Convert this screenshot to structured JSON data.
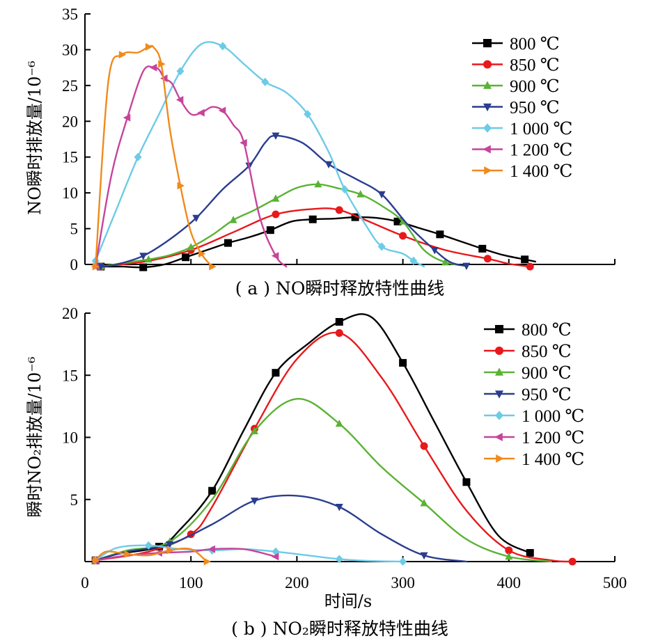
{
  "colors": {
    "800": "#000000",
    "850": "#e8181b",
    "900": "#5ab234",
    "950": "#2a3d8f",
    "1000": "#6ccbe6",
    "1200": "#c6449a",
    "1400": "#f08a1c"
  },
  "legend": [
    "800 ℃",
    "850 ℃",
    "900 ℃",
    "950 ℃",
    "1 000 ℃",
    "1 200 ℃",
    "1 400 ℃"
  ],
  "markers": [
    "square",
    "circle",
    "triangle-up",
    "triangle-down",
    "diamond",
    "triangle-left",
    "triangle-right"
  ],
  "chart_data": [
    {
      "type": "line",
      "caption": "( a ) NO瞬时释放特性曲线",
      "ylabel": "NO瞬时排放量/10⁻⁶",
      "xlim": [
        0,
        500
      ],
      "ylim": [
        0,
        35
      ],
      "yticks": [
        "0",
        "5",
        "10",
        "15",
        "20",
        "25",
        "30",
        "35"
      ],
      "ytick_values": [
        0,
        5,
        10,
        15,
        20,
        25,
        30,
        35
      ],
      "legend_position": "top-right",
      "series": [
        {
          "name": "800 ℃",
          "x": [
            15,
            35,
            55,
            75,
            95,
            115,
            135,
            155,
            175,
            195,
            215,
            235,
            255,
            275,
            295,
            315,
            335,
            355,
            375,
            395,
            415,
            425
          ],
          "y": [
            -0.3,
            -0.3,
            -0.4,
            0,
            1,
            2,
            3,
            3.8,
            4.8,
            6,
            6.3,
            6.4,
            6.6,
            6.5,
            6,
            5.1,
            4.2,
            3.2,
            2.2,
            1.3,
            0.7,
            0.4
          ]
        },
        {
          "name": "850 ℃",
          "x": [
            15,
            60,
            100,
            140,
            180,
            220,
            240,
            260,
            300,
            340,
            380,
            400,
            420
          ],
          "y": [
            -0.3,
            0.5,
            2,
            4.5,
            7,
            7.8,
            7.6,
            6.5,
            4,
            2,
            0.8,
            0.1,
            -0.3
          ]
        },
        {
          "name": "900 ℃",
          "x": [
            15,
            40,
            60,
            80,
            100,
            120,
            140,
            160,
            180,
            200,
            220,
            240,
            260,
            280,
            300,
            320,
            340,
            360
          ],
          "y": [
            -0.3,
            0.3,
            0.7,
            1.3,
            2.4,
            4.1,
            6.2,
            7.6,
            9.2,
            10.7,
            11.2,
            10.6,
            9.8,
            8.2,
            6,
            2,
            0.3,
            -0.2
          ]
        },
        {
          "name": "950 ℃",
          "x": [
            15,
            30,
            55,
            80,
            105,
            130,
            155,
            170,
            180,
            205,
            230,
            255,
            280,
            305,
            330,
            345,
            360
          ],
          "y": [
            -0.3,
            0,
            1.2,
            3.5,
            6.5,
            10.5,
            13.8,
            17,
            18,
            17,
            14,
            12,
            9.8,
            5.5,
            2,
            0.3,
            -0.2
          ]
        },
        {
          "name": "1 000 ℃",
          "x": [
            10,
            30,
            50,
            70,
            90,
            110,
            130,
            150,
            170,
            190,
            210,
            230,
            245,
            265,
            280,
            300,
            310,
            320
          ],
          "y": [
            0.5,
            7.8,
            15,
            21,
            27,
            30.8,
            30.5,
            28,
            25.5,
            24,
            21,
            15.7,
            10.5,
            5.5,
            2.5,
            1.5,
            0.5,
            -0.3
          ]
        },
        {
          "name": "1 200 ℃",
          "x": [
            10,
            25,
            40,
            55,
            65,
            70,
            75,
            82,
            90,
            100,
            110,
            120,
            130,
            140,
            150,
            165,
            180,
            190
          ],
          "y": [
            -0.3,
            12.5,
            20.5,
            27,
            27.5,
            27.2,
            26,
            25.3,
            23,
            21,
            21.2,
            22,
            21.5,
            19.5,
            17,
            6.6,
            1.2,
            -0.3
          ]
        },
        {
          "name": "1 400 ℃",
          "x": [
            10,
            22,
            35,
            50,
            60,
            65,
            72,
            80,
            90,
            100,
            110,
            115,
            120
          ],
          "y": [
            -0.3,
            25.5,
            29.3,
            29.6,
            30.4,
            30.3,
            28,
            19,
            11,
            4.5,
            1.5,
            0.5,
            -0.3
          ]
        }
      ]
    },
    {
      "type": "line",
      "caption": "( b ) NO₂瞬时释放特性曲线",
      "xlabel": "时间/s",
      "ylabel": "瞬时NO₂排放量/10⁻⁶",
      "xlim": [
        0,
        500
      ],
      "ylim": [
        0,
        20
      ],
      "xticks": [
        "0",
        "100",
        "200",
        "300",
        "400",
        "500"
      ],
      "xtick_values": [
        0,
        100,
        200,
        300,
        400,
        500
      ],
      "yticks": [
        "5",
        "10",
        "15",
        "20"
      ],
      "ytick_values": [
        5,
        10,
        15,
        20
      ],
      "legend_position": "top-right",
      "series": [
        {
          "name": "800 ℃",
          "x": [
            10,
            30,
            70,
            90,
            120,
            150,
            180,
            210,
            240,
            270,
            300,
            330,
            360,
            390,
            420
          ],
          "y": [
            0.1,
            0.6,
            1.2,
            2.6,
            5.7,
            10.6,
            15.2,
            17.5,
            19.3,
            19.7,
            16,
            11.2,
            6.4,
            2.1,
            0.7
          ]
        },
        {
          "name": "850 ℃",
          "x": [
            10,
            60,
            100,
            120,
            160,
            200,
            240,
            280,
            320,
            360,
            400,
            440,
            460
          ],
          "y": [
            0.1,
            0.8,
            2.2,
            4.4,
            10.7,
            16.3,
            18.4,
            14.8,
            9.3,
            4.1,
            0.9,
            0.1,
            0
          ]
        },
        {
          "name": "900 ℃",
          "x": [
            10,
            40,
            80,
            120,
            160,
            200,
            240,
            280,
            320,
            360,
            400,
            440
          ],
          "y": [
            0.1,
            0.9,
            1.6,
            5,
            10.5,
            13.1,
            11.1,
            7.6,
            4.7,
            1.8,
            0.4,
            0
          ]
        },
        {
          "name": "950 ℃",
          "x": [
            10,
            40,
            80,
            120,
            160,
            200,
            240,
            280,
            320,
            360
          ],
          "y": [
            0.1,
            0.8,
            1.4,
            3,
            4.9,
            5.3,
            4.4,
            2.2,
            0.5,
            0
          ]
        },
        {
          "name": "1 000 ℃",
          "x": [
            10,
            30,
            60,
            90,
            120,
            150,
            180,
            210,
            240,
            270,
            300
          ],
          "y": [
            0.1,
            1.1,
            1.3,
            1,
            0.9,
            1,
            0.8,
            0.5,
            0.2,
            0.05,
            0
          ]
        },
        {
          "name": "1 200 ℃",
          "x": [
            10,
            40,
            70,
            100,
            120,
            150,
            180
          ],
          "y": [
            0.1,
            0.5,
            0.7,
            0.8,
            1,
            1,
            0.4
          ]
        },
        {
          "name": "1 400 ℃",
          "x": [
            10,
            20,
            40,
            60,
            80,
            100,
            115
          ],
          "y": [
            0.1,
            0.8,
            0.6,
            0.5,
            0.9,
            1,
            0
          ]
        }
      ]
    }
  ]
}
